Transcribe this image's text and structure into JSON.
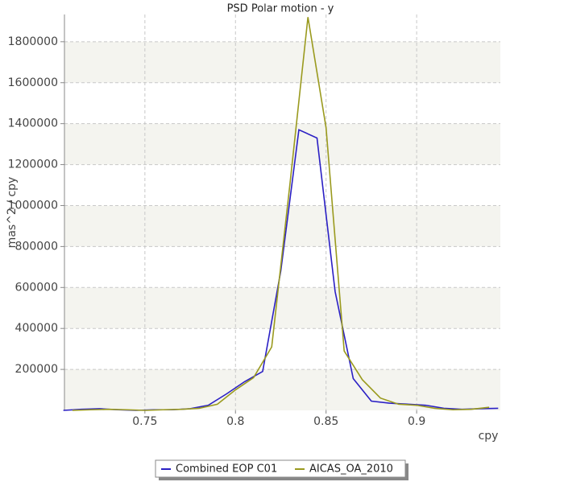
{
  "chart_data": {
    "type": "line",
    "title": "PSD Polar motion - y",
    "xlabel": "cpy",
    "ylabel": "mas^2 / cpy",
    "xlim": [
      0.7056,
      0.9462
    ],
    "ylim": [
      0,
      1933000
    ],
    "xticks": [
      0.75,
      0.8,
      0.85,
      0.9
    ],
    "yticks": [
      200000,
      400000,
      600000,
      800000,
      1000000,
      1200000,
      1400000,
      1600000,
      1800000
    ],
    "grid": true,
    "legend": "bottom",
    "series": [
      {
        "name": "Combined EOP C01",
        "color": "#2a1fc4",
        "x": [
          0.705,
          0.715,
          0.725,
          0.735,
          0.745,
          0.755,
          0.765,
          0.775,
          0.785,
          0.795,
          0.805,
          0.815,
          0.825,
          0.835,
          0.845,
          0.855,
          0.865,
          0.875,
          0.885,
          0.895,
          0.905,
          0.915,
          0.925,
          0.935,
          0.945
        ],
        "values": [
          0,
          5000,
          8000,
          3000,
          0,
          3000,
          3000,
          8000,
          25000,
          80000,
          140000,
          190000,
          680000,
          1370000,
          1330000,
          580000,
          155000,
          45000,
          35000,
          30000,
          25000,
          10000,
          5000,
          8000,
          10000
        ]
      },
      {
        "name": "AICAS_OA_2010",
        "color": "#9a9a1e",
        "x": [
          0.71,
          0.72,
          0.73,
          0.74,
          0.75,
          0.76,
          0.77,
          0.78,
          0.79,
          0.8,
          0.81,
          0.82,
          0.83,
          0.84,
          0.85,
          0.86,
          0.87,
          0.88,
          0.89,
          0.9,
          0.91,
          0.92,
          0.93,
          0.94
        ],
        "values": [
          0,
          3000,
          5000,
          3000,
          0,
          3000,
          5000,
          10000,
          30000,
          100000,
          160000,
          310000,
          1100000,
          1920000,
          1380000,
          290000,
          150000,
          60000,
          30000,
          25000,
          10000,
          3000,
          5000,
          15000
        ]
      }
    ]
  }
}
